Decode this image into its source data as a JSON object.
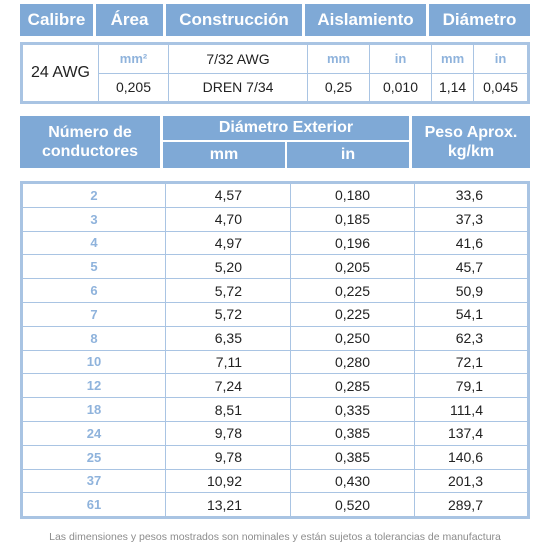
{
  "header": {
    "calibre": "Calibre",
    "area": "Área",
    "construccion": "Construcción",
    "aislamiento": "Aislamiento",
    "diametro": "Diámetro"
  },
  "spec": {
    "awg": "24 AWG",
    "area_unit": "mm²",
    "area_value": "0,205",
    "construction_top": "7/32 AWG",
    "construction_bottom": "DREN 7/34",
    "ais_mm_unit": "mm",
    "ais_in_unit": "in",
    "ais_mm": "0,25",
    "ais_in": "0,010",
    "dia_mm_unit": "mm",
    "dia_in_unit": "in",
    "dia_mm": "1,14",
    "dia_in": "0,045"
  },
  "table_header": {
    "conductores": "Número de conductores",
    "diametro_exterior": "Diámetro Exterior",
    "mm": "mm",
    "in": "in",
    "peso": "Peso Aprox. kg/km"
  },
  "rows": [
    {
      "n": "2",
      "mm": "4,57",
      "in": "0,180",
      "w": "33,6"
    },
    {
      "n": "3",
      "mm": "4,70",
      "in": "0,185",
      "w": "37,3"
    },
    {
      "n": "4",
      "mm": "4,97",
      "in": "0,196",
      "w": "41,6"
    },
    {
      "n": "5",
      "mm": "5,20",
      "in": "0,205",
      "w": "45,7"
    },
    {
      "n": "6",
      "mm": "5,72",
      "in": "0,225",
      "w": "50,9"
    },
    {
      "n": "7",
      "mm": "5,72",
      "in": "0,225",
      "w": "54,1"
    },
    {
      "n": "8",
      "mm": "6,35",
      "in": "0,250",
      "w": "62,3"
    },
    {
      "n": "10",
      "mm": "7,11",
      "in": "0,280",
      "w": "72,1"
    },
    {
      "n": "12",
      "mm": "7,24",
      "in": "0,285",
      "w": "79,1"
    },
    {
      "n": "18",
      "mm": "8,51",
      "in": "0,335",
      "w": "111,4"
    },
    {
      "n": "24",
      "mm": "9,78",
      "in": "0,385",
      "w": "137,4"
    },
    {
      "n": "25",
      "mm": "9,78",
      "in": "0,385",
      "w": "140,6"
    },
    {
      "n": "37",
      "mm": "10,92",
      "in": "0,430",
      "w": "201,3"
    },
    {
      "n": "61",
      "mm": "13,21",
      "in": "0,520",
      "w": "289,7"
    }
  ],
  "footer": "Las dimensiones y pesos mostrados son nominales y están sujetos a tolerancias de manufactura",
  "colors": {
    "header_bg": "#7fa9d6",
    "border": "#a9c4e3",
    "accent_text": "#8fb3dc"
  }
}
